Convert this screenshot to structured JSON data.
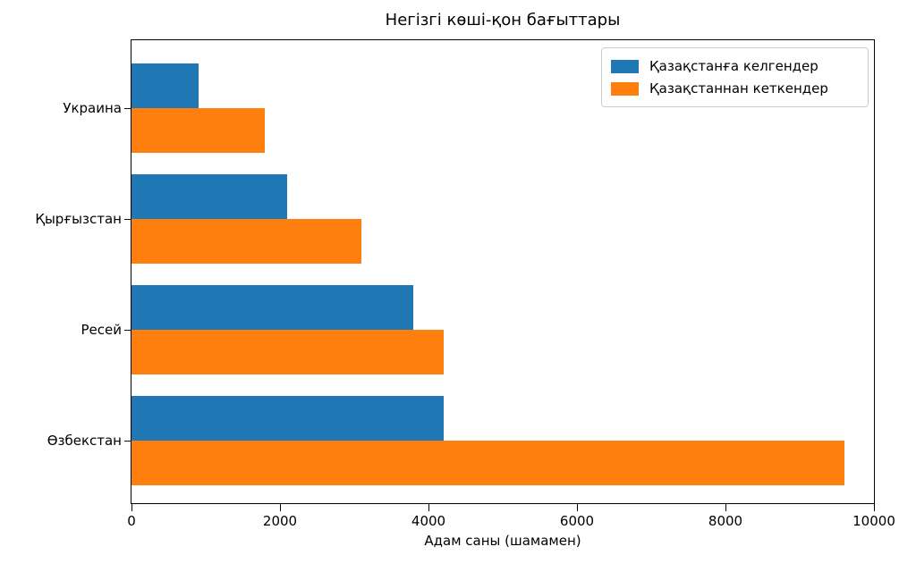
{
  "chart_data": {
    "type": "bar",
    "orientation": "horizontal",
    "title": "Негізгі көші-қон бағыттары",
    "xlabel": "Адам саны (шамамен)",
    "categories": [
      "Украина",
      "Қырғызстан",
      "Ресей",
      "Өзбекстан"
    ],
    "series": [
      {
        "name": "Қазақстанға келгендер",
        "color": "#1f77b4",
        "values": [
          900,
          2100,
          3800,
          4200
        ]
      },
      {
        "name": "Қазақстаннан кеткендер",
        "color": "#ff7f0e",
        "values": [
          1800,
          3100,
          4200,
          9600
        ]
      }
    ],
    "xlim": [
      0,
      10000
    ],
    "xticks": [
      0,
      2000,
      4000,
      6000,
      8000,
      10000
    ],
    "legend_position": "upper right",
    "grid": false,
    "spine_color": "#000000",
    "text_color": "#000000"
  }
}
